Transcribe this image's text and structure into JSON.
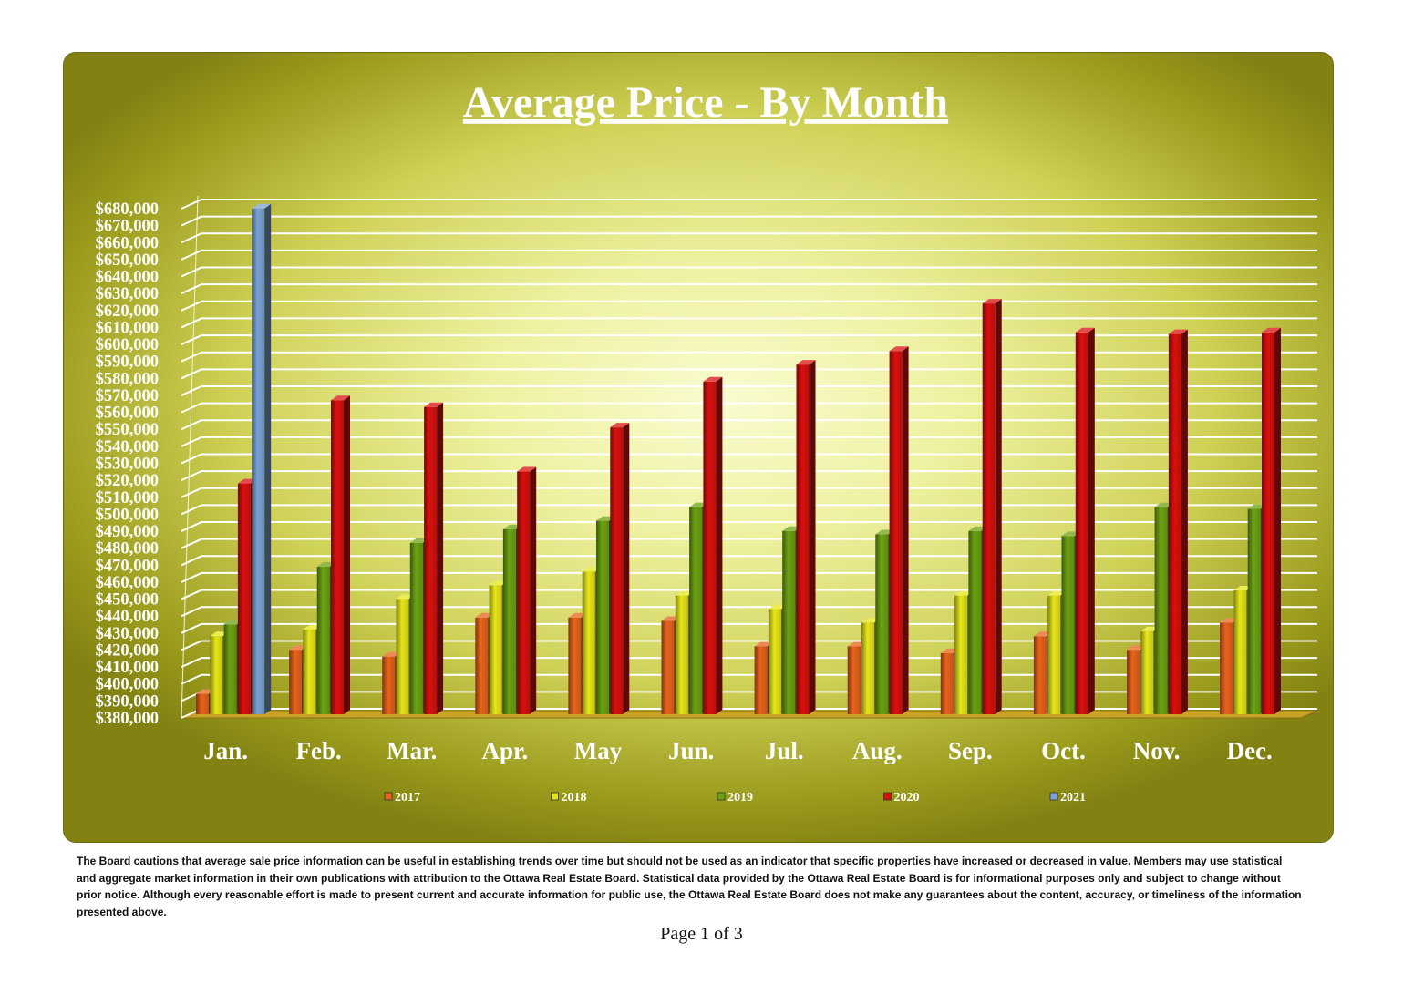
{
  "chart_data": {
    "type": "bar",
    "title": "Average Price - By Month",
    "xlabel": "",
    "ylabel": "",
    "ylim": [
      380000,
      680000
    ],
    "ytick_step": 10000,
    "ytick_prefix": "$",
    "grid": true,
    "legend_position": "bottom",
    "categories": [
      "Jan.",
      "Feb.",
      "Mar.",
      "Apr.",
      "May",
      "Jun.",
      "Jul.",
      "Aug.",
      "Sep.",
      "Oct.",
      "Nov.",
      "Dec."
    ],
    "series": [
      {
        "name": "2017",
        "color": "#e8631c",
        "values": [
          392000,
          418000,
          414000,
          437000,
          437000,
          435000,
          420000,
          420000,
          416000,
          426000,
          418000,
          434000
        ]
      },
      {
        "name": "2018",
        "color": "#e6e619",
        "values": [
          426000,
          430000,
          448000,
          456000,
          464000,
          450000,
          442000,
          434000,
          450000,
          450000,
          429000,
          453000
        ]
      },
      {
        "name": "2019",
        "color": "#6ca212",
        "values": [
          433000,
          467000,
          481000,
          489000,
          494000,
          502000,
          488000,
          486000,
          488000,
          485000,
          502000,
          501000
        ]
      },
      {
        "name": "2020",
        "color": "#d8100e",
        "values": [
          516000,
          565000,
          561000,
          523000,
          549000,
          576000,
          586000,
          594000,
          622000,
          605000,
          604000,
          605000
        ]
      },
      {
        "name": "2021",
        "color": "#7aa2d2",
        "values": [
          678000,
          null,
          null,
          null,
          null,
          null,
          null,
          null,
          null,
          null,
          null,
          null
        ]
      }
    ]
  },
  "footer": {
    "disclaimer": "The Board cautions that average sale price information can be useful in establishing trends over time but should not be used as an indicator that specific properties have increased or decreased in value. Members may use statistical and aggregate market information in their own publications with attribution to the Ottawa Real Estate Board. Statistical data provided by the Ottawa Real Estate Board is for informational purposes only and subject to change without prior notice. Although every reasonable effort is made to present current and accurate information for public use, the Ottawa Real Estate Board does not make any guarantees about the content, accuracy, or timeliness of the information presented above.",
    "page_label": "Page 1 of 3"
  }
}
